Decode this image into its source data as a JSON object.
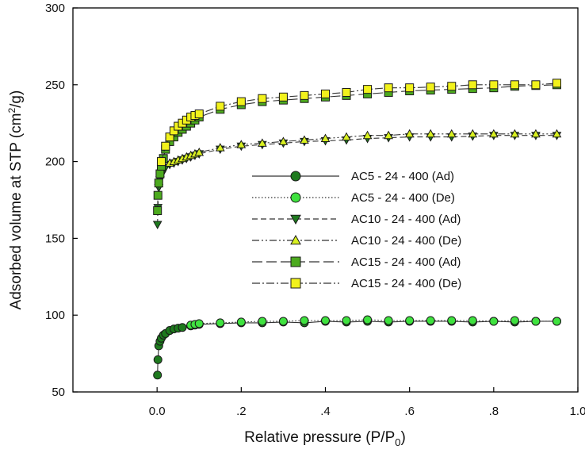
{
  "chart_data": {
    "type": "scatter",
    "title": "",
    "xlabel": "Relative pressure (P/P",
    "xlabel_sub": "0",
    "xlabel_end": ")",
    "ylabel_pre": "Adsorbed volume at STP (cm",
    "ylabel_sup": "2",
    "ylabel_post": "/g)",
    "xlim": [
      -0.2,
      1.0
    ],
    "ylim": [
      50,
      300
    ],
    "x_ticks": [
      0.0,
      0.2,
      0.4,
      0.6,
      0.8,
      1.0
    ],
    "x_tick_labels": [
      "0.0",
      ".2",
      ".4",
      ".6",
      ".8",
      "1.0"
    ],
    "y_ticks": [
      50,
      100,
      150,
      200,
      250,
      300
    ],
    "y_tick_labels": [
      "50",
      "100",
      "150",
      "200",
      "250",
      "300"
    ],
    "grid": false,
    "legend_position": "center-right",
    "series": [
      {
        "name": "AC5 - 24 - 400 (Ad)",
        "marker": "circle",
        "fill": "#1e7a1e",
        "line": "solid",
        "x": [
          0.001,
          0.002,
          0.004,
          0.007,
          0.01,
          0.015,
          0.02,
          0.03,
          0.04,
          0.05,
          0.06,
          0.08,
          0.09,
          0.1,
          0.15,
          0.2,
          0.25,
          0.3,
          0.35,
          0.4,
          0.45,
          0.5,
          0.55,
          0.6,
          0.65,
          0.7,
          0.75,
          0.8,
          0.85,
          0.9,
          0.95
        ],
        "y": [
          61,
          71,
          80,
          83,
          85,
          87,
          88,
          90,
          91,
          91.5,
          92,
          93,
          93.5,
          94,
          94.5,
          95,
          95,
          95.5,
          95,
          96,
          95.5,
          96,
          95.5,
          96,
          96,
          96,
          95.5,
          96,
          95.5,
          96,
          96
        ]
      },
      {
        "name": "AC5 - 24 - 400 (De)",
        "marker": "circle",
        "fill": "#3fe23f",
        "line": "dotted",
        "x": [
          0.08,
          0.09,
          0.1,
          0.15,
          0.2,
          0.25,
          0.3,
          0.35,
          0.4,
          0.45,
          0.5,
          0.55,
          0.6,
          0.65,
          0.7,
          0.75,
          0.8,
          0.85,
          0.9,
          0.95
        ],
        "y": [
          93.5,
          94,
          94.5,
          95,
          95.5,
          96,
          96,
          96.5,
          96.5,
          96.5,
          97,
          96.5,
          96.5,
          96.5,
          96.5,
          96.5,
          96,
          96.5,
          96,
          96
        ]
      },
      {
        "name": "AC10 - 24 - 400 (Ad)",
        "marker": "triangle-down",
        "fill": "#1e7a1e",
        "line": "dashed",
        "x": [
          0.001,
          0.002,
          0.004,
          0.007,
          0.01,
          0.015,
          0.02,
          0.03,
          0.04,
          0.05,
          0.06,
          0.07,
          0.08,
          0.09,
          0.1,
          0.15,
          0.2,
          0.25,
          0.3,
          0.35,
          0.4,
          0.45,
          0.5,
          0.55,
          0.6,
          0.65,
          0.7,
          0.75,
          0.8,
          0.85,
          0.9,
          0.95
        ],
        "y": [
          159,
          170,
          183,
          188,
          191,
          194,
          196,
          198,
          199,
          200,
          201,
          202,
          203,
          204,
          205,
          208,
          210,
          211,
          212,
          213,
          213.5,
          214,
          215,
          215.5,
          216,
          216,
          216,
          216.5,
          217,
          217,
          217,
          217
        ]
      },
      {
        "name": "AC10 - 24 - 400 (De)",
        "marker": "triangle-up",
        "fill": "#d8f020",
        "line": "dash-dot-dot",
        "x": [
          0.03,
          0.04,
          0.05,
          0.06,
          0.07,
          0.08,
          0.09,
          0.1,
          0.15,
          0.2,
          0.25,
          0.3,
          0.35,
          0.4,
          0.45,
          0.5,
          0.55,
          0.6,
          0.65,
          0.7,
          0.75,
          0.8,
          0.85,
          0.9,
          0.95
        ],
        "y": [
          199,
          200,
          201,
          202,
          203,
          204,
          205,
          206,
          209,
          211,
          212,
          213,
          214,
          215,
          216,
          217,
          217,
          218,
          218,
          218,
          218,
          218,
          218,
          218,
          218
        ]
      },
      {
        "name": "AC15 - 24 - 400 (Ad)",
        "marker": "square",
        "fill": "#4caa1e",
        "line": "long-dash",
        "x": [
          0.001,
          0.002,
          0.004,
          0.007,
          0.01,
          0.015,
          0.02,
          0.03,
          0.04,
          0.05,
          0.06,
          0.07,
          0.08,
          0.09,
          0.1,
          0.15,
          0.2,
          0.25,
          0.3,
          0.35,
          0.4,
          0.45,
          0.5,
          0.55,
          0.6,
          0.65,
          0.7,
          0.75,
          0.8,
          0.85,
          0.9,
          0.95
        ],
        "y": [
          168,
          178,
          186,
          192,
          197,
          202,
          208,
          213,
          216,
          219,
          221,
          223,
          225,
          227,
          229,
          234,
          237,
          239,
          240,
          241,
          242,
          243,
          244,
          245,
          246,
          246.5,
          247,
          247.5,
          248,
          249,
          249.5,
          250
        ]
      },
      {
        "name": "AC15 - 24 - 400 (De)",
        "marker": "square",
        "fill": "#f2f21c",
        "line": "dash-dot",
        "x": [
          0.01,
          0.02,
          0.03,
          0.04,
          0.05,
          0.06,
          0.07,
          0.08,
          0.09,
          0.1,
          0.15,
          0.2,
          0.25,
          0.3,
          0.35,
          0.4,
          0.45,
          0.5,
          0.55,
          0.6,
          0.65,
          0.7,
          0.75,
          0.8,
          0.85,
          0.9,
          0.95
        ],
        "y": [
          200,
          210,
          216,
          220,
          223,
          225,
          227,
          229,
          230,
          231,
          236,
          239,
          241,
          242,
          243,
          244,
          245,
          247,
          248,
          248,
          248.5,
          249,
          250,
          250,
          250,
          250,
          251
        ]
      }
    ]
  }
}
